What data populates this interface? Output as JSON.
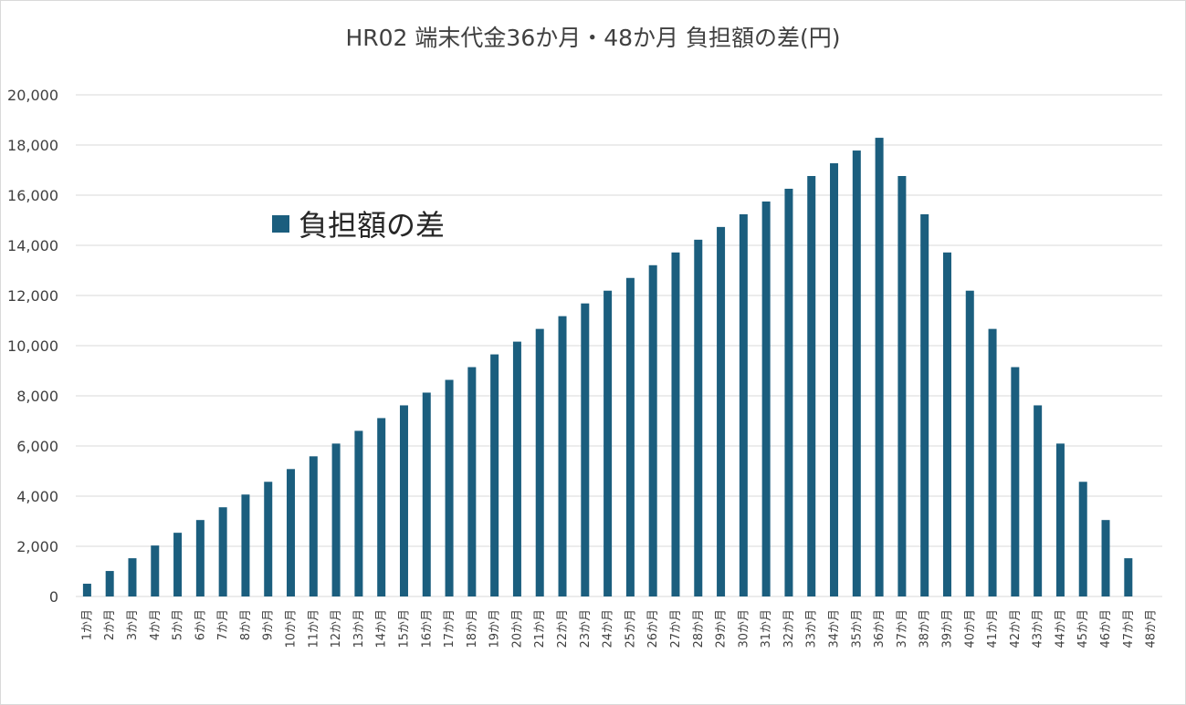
{
  "chart_data": {
    "type": "bar",
    "title": "HR02 端末代金36か月・48か月 負担額の差(円)",
    "series": [
      {
        "name": "負担額の差",
        "color": "#1b5e7e",
        "values": [
          508,
          1016,
          1524,
          2032,
          2540,
          3048,
          3556,
          4064,
          4572,
          5080,
          5588,
          6096,
          6604,
          7112,
          7620,
          8128,
          8636,
          9144,
          9652,
          10160,
          10668,
          11176,
          11684,
          12192,
          12700,
          13208,
          13716,
          14224,
          14732,
          15240,
          15748,
          16256,
          16764,
          17272,
          17780,
          18288,
          16764,
          15240,
          13716,
          12192,
          10668,
          9144,
          7620,
          6096,
          4572,
          3048,
          1524,
          0
        ]
      }
    ],
    "categories": [
      "1か月",
      "2か月",
      "3か月",
      "4か月",
      "5か月",
      "6か月",
      "7か月",
      "8か月",
      "9か月",
      "10か月",
      "11か月",
      "12か月",
      "13か月",
      "14か月",
      "15か月",
      "16か月",
      "17か月",
      "18か月",
      "19か月",
      "20か月",
      "21か月",
      "22か月",
      "23か月",
      "24か月",
      "25か月",
      "26か月",
      "27か月",
      "28か月",
      "29か月",
      "30か月",
      "31か月",
      "32か月",
      "33か月",
      "34か月",
      "35か月",
      "36か月",
      "37か月",
      "38か月",
      "39か月",
      "40か月",
      "41か月",
      "42か月",
      "43か月",
      "44か月",
      "45か月",
      "46か月",
      "47か月",
      "48か月"
    ],
    "yticks": [
      "0",
      "2,000",
      "4,000",
      "6,000",
      "8,000",
      "10,000",
      "12,000",
      "14,000",
      "16,000",
      "18,000",
      "20,000"
    ],
    "ylim": [
      0,
      20000
    ],
    "grid": true,
    "legend_position": "upper-left inside plot",
    "gridline_color": "#d9d9d9"
  }
}
